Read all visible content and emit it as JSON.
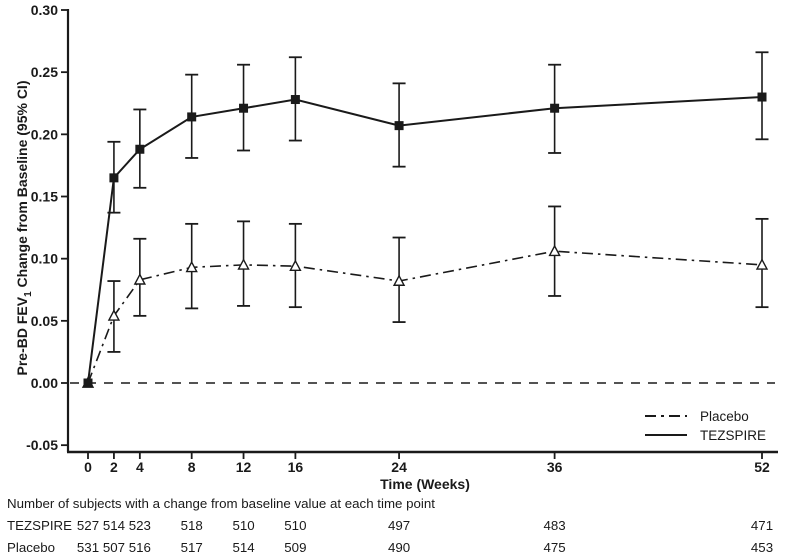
{
  "figure": {
    "background": "#ffffff",
    "ink_color": "#1a1a1a"
  },
  "chart_data": {
    "type": "line",
    "title": "",
    "xlabel": "Time (Weeks)",
    "ylabel": "Pre-BD FEV1 Change from Baseline (95% CI)",
    "ylabel_parts": {
      "pre": "Pre-BD FEV",
      "sub": "1",
      "post": " Change from Baseline (95% CI)"
    },
    "ylim": [
      -0.05,
      0.3
    ],
    "ytick_values": [
      0.3,
      0.25,
      0.2,
      0.15,
      0.1,
      0.05,
      0.0,
      -0.05
    ],
    "ytick_labels": [
      "0.30",
      "0.25",
      "0.20",
      "0.15",
      "0.10",
      "0.05",
      "0.00",
      "-0.05"
    ],
    "xtick_weeks": [
      0,
      2,
      4,
      8,
      12,
      16,
      24,
      36,
      52
    ],
    "xtick_labels": [
      "0",
      "2",
      "4",
      "8",
      "12",
      "16",
      "24",
      "36",
      "52"
    ],
    "zero_reference_line": true,
    "grid": false,
    "legend_position": "lower-right",
    "series": [
      {
        "name": "Placebo",
        "line_style": "dash-dot",
        "marker": "open-triangle",
        "x": [
          0,
          2,
          4,
          8,
          12,
          16,
          24,
          36,
          52
        ],
        "y": [
          0.0,
          0.054,
          0.083,
          0.093,
          0.095,
          0.094,
          0.082,
          0.106,
          0.095
        ],
        "ci_low": [
          null,
          0.025,
          0.054,
          0.06,
          0.062,
          0.061,
          0.049,
          0.07,
          0.061
        ],
        "ci_high": [
          null,
          0.082,
          0.116,
          0.128,
          0.13,
          0.128,
          0.117,
          0.142,
          0.132
        ]
      },
      {
        "name": "TEZSPIRE",
        "line_style": "solid",
        "marker": "filled-square",
        "x": [
          0,
          2,
          4,
          8,
          12,
          16,
          24,
          36,
          52
        ],
        "y": [
          0.0,
          0.165,
          0.188,
          0.214,
          0.221,
          0.228,
          0.207,
          0.221,
          0.23
        ],
        "ci_low": [
          null,
          0.137,
          0.157,
          0.181,
          0.187,
          0.195,
          0.174,
          0.185,
          0.196
        ],
        "ci_high": [
          null,
          0.194,
          0.22,
          0.248,
          0.256,
          0.262,
          0.241,
          0.256,
          0.266
        ]
      }
    ]
  },
  "footer": {
    "note": "Number of subjects with a change from baseline value at each time point",
    "rows": [
      {
        "label": "TEZSPIRE",
        "values": [
          "527",
          "514",
          "523",
          "518",
          "510",
          "510",
          "497",
          "483",
          "471"
        ]
      },
      {
        "label": "Placebo",
        "values": [
          "531",
          "507",
          "516",
          "517",
          "514",
          "509",
          "490",
          "475",
          "453"
        ]
      }
    ]
  }
}
